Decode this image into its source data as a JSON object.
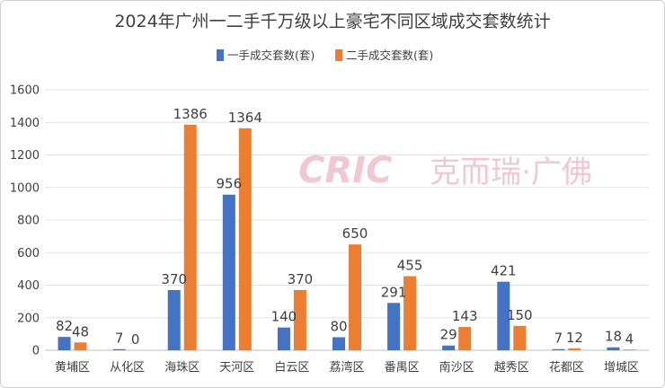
{
  "chart_data": {
    "type": "bar",
    "title": "2024年广州一二手千万级以上豪宅不同区域成交套数统计",
    "categories": [
      "黄埔区",
      "从化区",
      "海珠区",
      "天河区",
      "白云区",
      "荔湾区",
      "番禺区",
      "南沙区",
      "越秀区",
      "花都区",
      "增城区"
    ],
    "series": [
      {
        "name": "一手成交套数(套)",
        "values": [
          82,
          7,
          370,
          956,
          140,
          80,
          291,
          29,
          421,
          7,
          18
        ],
        "color": "#4472c4"
      },
      {
        "name": "二手成交套数(套)",
        "values": [
          48,
          0,
          1386,
          1364,
          370,
          650,
          455,
          143,
          150,
          12,
          4
        ],
        "color": "#ed7d31"
      }
    ],
    "ylim": [
      0,
      1600
    ],
    "yticks": [
      0,
      200,
      400,
      600,
      800,
      1000,
      1200,
      1400,
      1600
    ],
    "grid": true,
    "legend_position": "top",
    "xlabel": "",
    "ylabel": ""
  },
  "watermark": {
    "latin": "CRIC",
    "chinese": "克而瑞·广佛",
    "color": "#f2c7d2"
  }
}
